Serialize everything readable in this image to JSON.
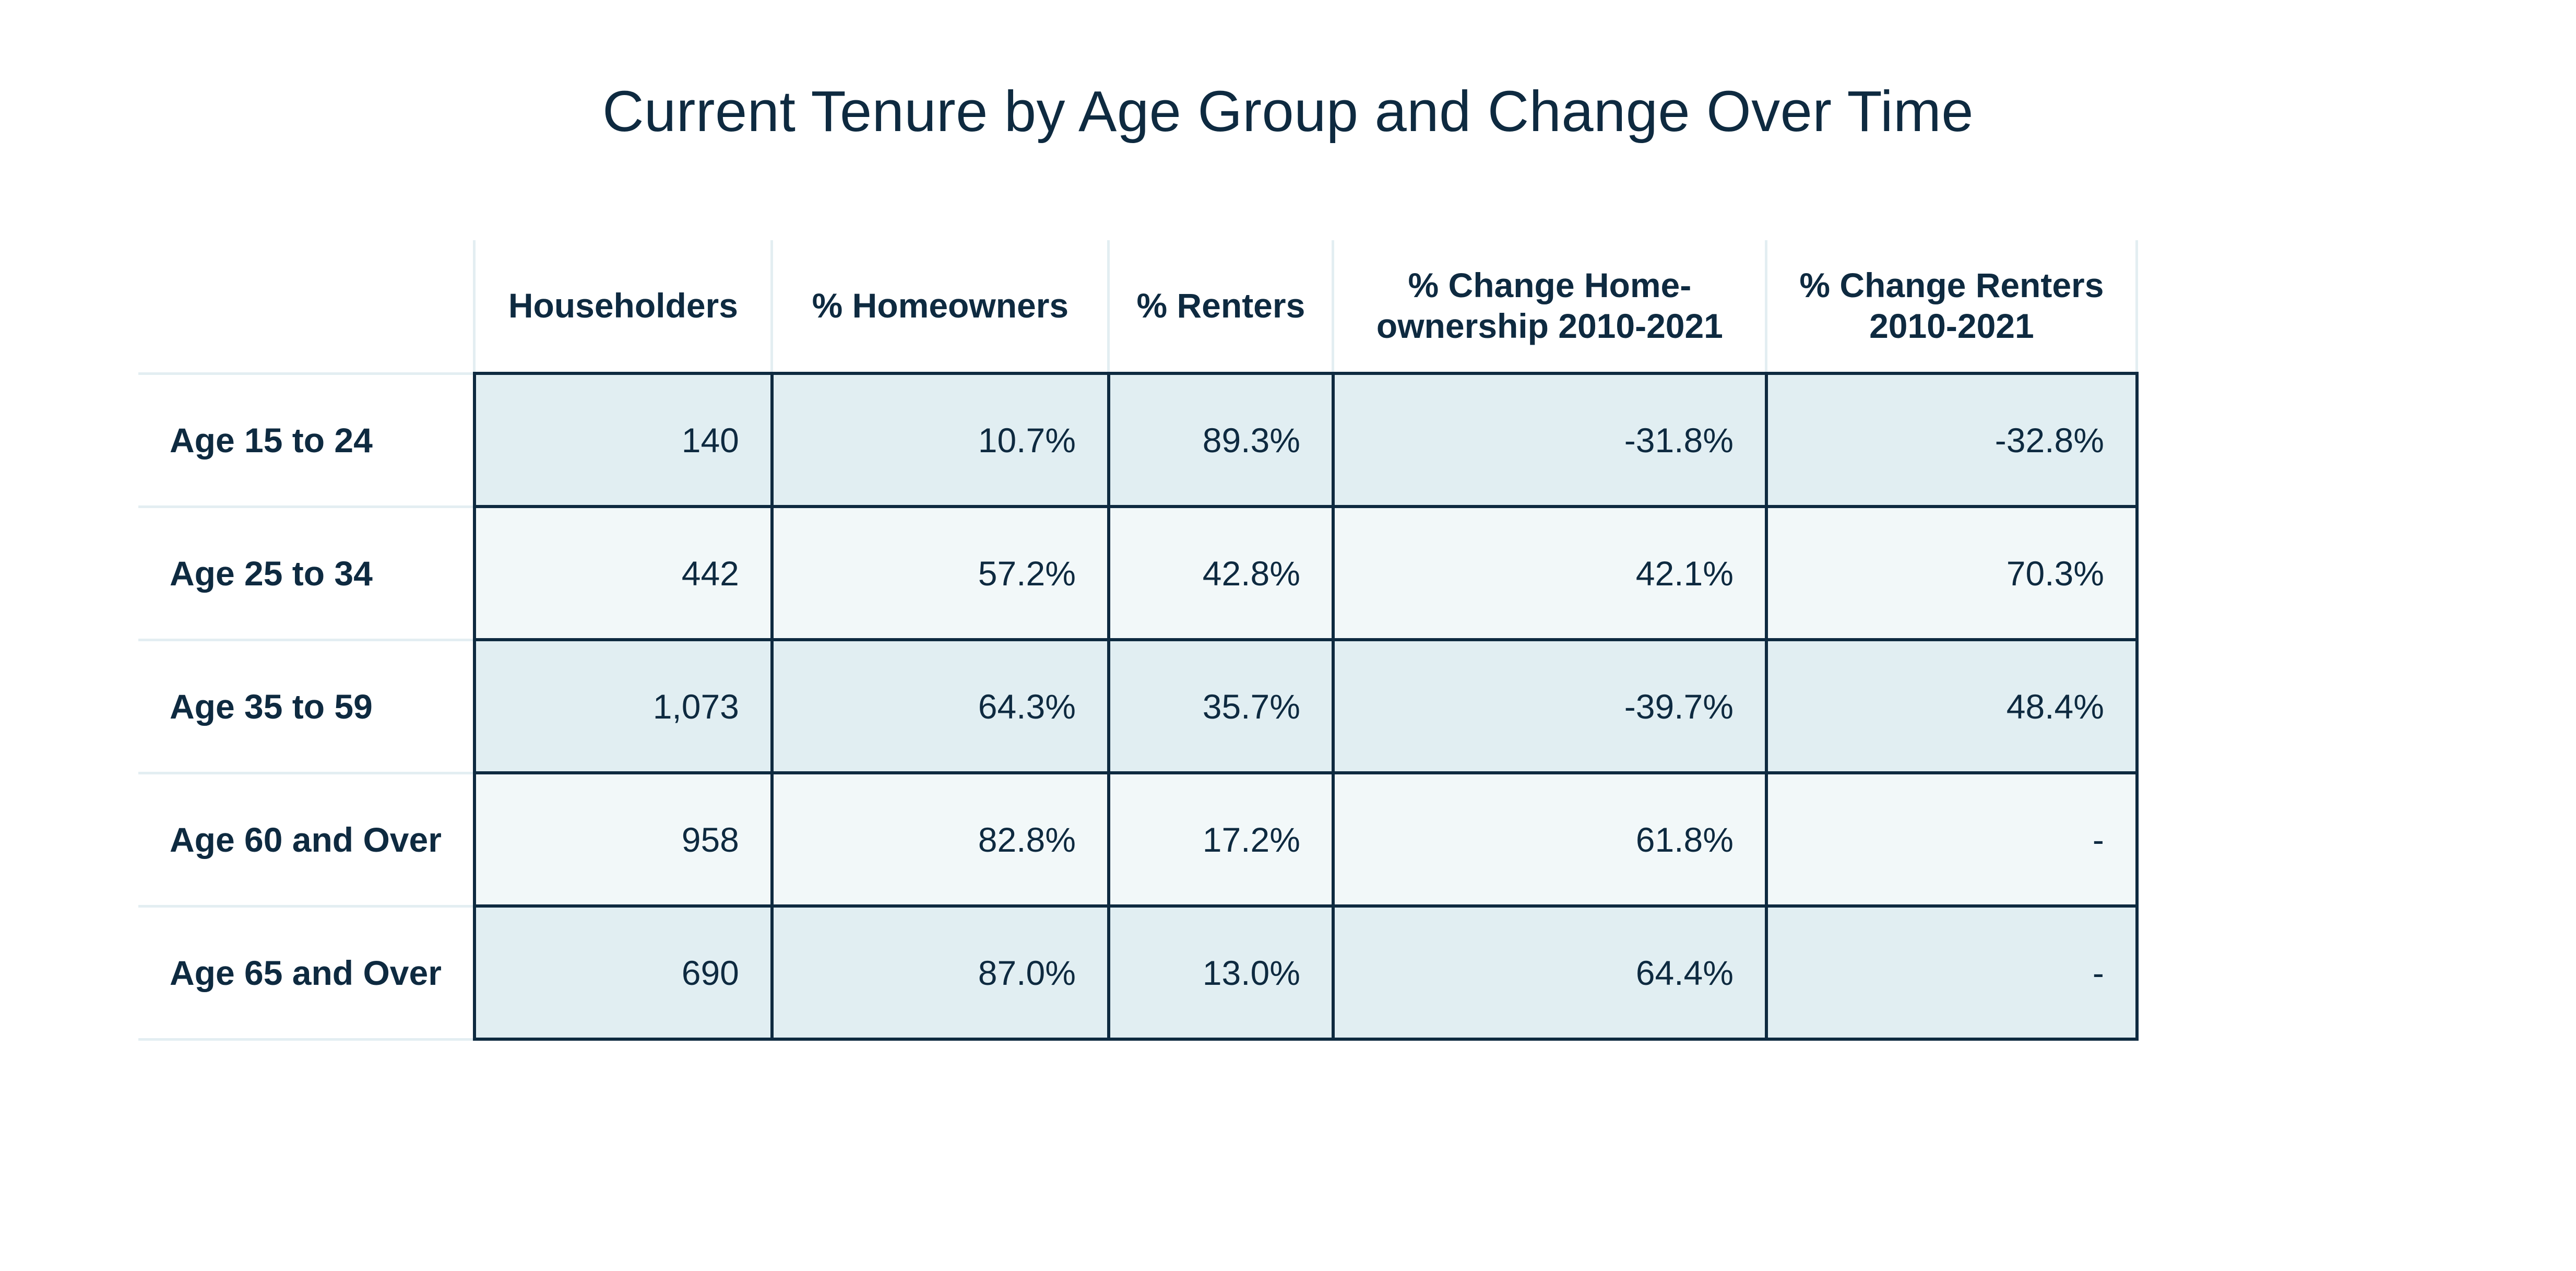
{
  "chart_data": {
    "type": "table",
    "title": "Current Tenure by Age Group and Change Over Time",
    "columns": [
      "Householders",
      "% Homeowners",
      "% Renters",
      "% Change Home-ownership 2010-2021",
      "% Change Renters 2010-2021"
    ],
    "rows": [
      {
        "label": "Age 15 to 24",
        "values": [
          "140",
          "10.7%",
          "89.3%",
          "-31.8%",
          "-32.8%"
        ]
      },
      {
        "label": "Age 25 to 34",
        "values": [
          "442",
          "57.2%",
          "42.8%",
          "42.1%",
          "70.3%"
        ]
      },
      {
        "label": "Age 35 to 59",
        "values": [
          "1,073",
          "64.3%",
          "35.7%",
          "-39.7%",
          "48.4%"
        ]
      },
      {
        "label": "Age 60 and Over",
        "values": [
          "958",
          "82.8%",
          "17.2%",
          "61.8%",
          "-"
        ]
      },
      {
        "label": "Age 65 and Over",
        "values": [
          "690",
          "87.0%",
          "13.0%",
          "64.4%",
          "-"
        ]
      }
    ]
  },
  "colors": {
    "text": "#0e2a40",
    "row_shade_dark": "#e1eef2",
    "row_shade_light": "#f2f8f9",
    "border": "#0e2a40",
    "header_divider": "#e3eef2"
  }
}
